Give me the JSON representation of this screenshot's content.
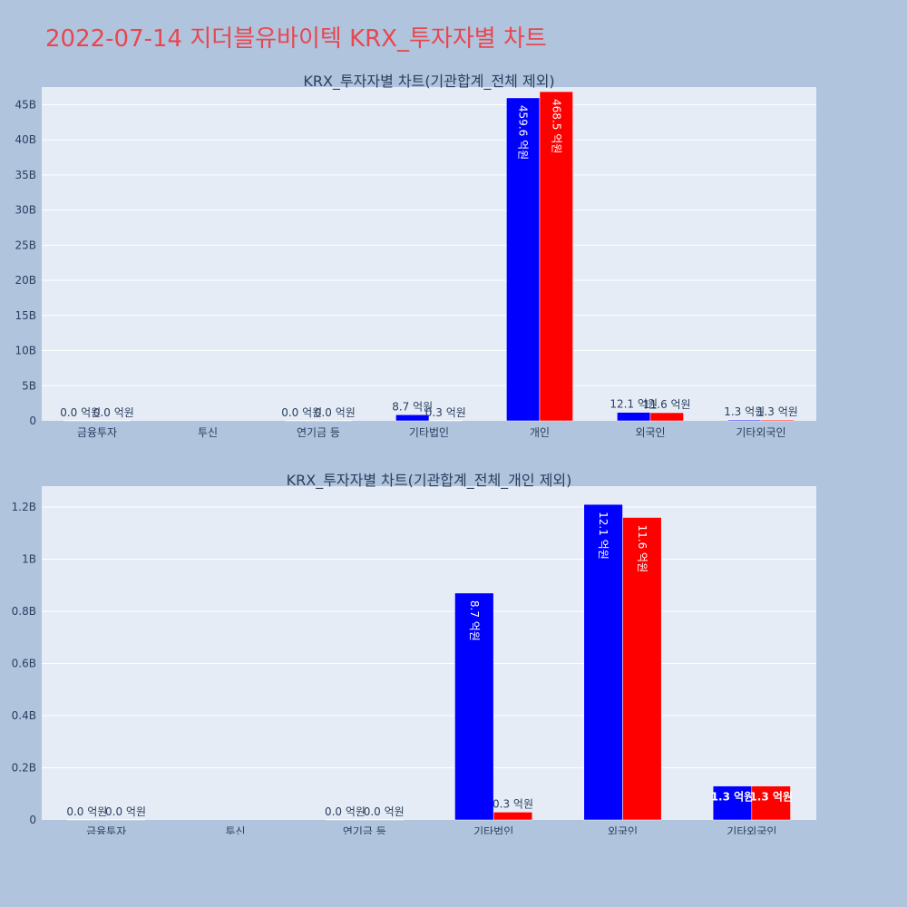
{
  "page_title": "2022-07-14 지더블유바이텍 KRX_투자자별 차트",
  "colors": {
    "background": "#b0c4de",
    "plot_bg": "#e5ecf6",
    "title": "#e8474f",
    "buy": "#0000ff",
    "sell": "#ff0000",
    "text": "#2a3f5f",
    "grid": "#ffffff"
  },
  "chart_data": [
    {
      "type": "bar",
      "title": "KRX_투자자별 차트(기관합계_전체 제외)",
      "categories": [
        "금융투자",
        "투신",
        "연기금 등",
        "기타법인",
        "개인",
        "외국인",
        "기타외국인"
      ],
      "series": [
        {
          "color": "#0000ff",
          "values": [
            0,
            null,
            0,
            870000000,
            45960000000,
            1210000000,
            130000000
          ],
          "labels": [
            "0.0 억원",
            "",
            "0.0 억원",
            "8.7 억원",
            "459.6 억원",
            "12.1 억원",
            "1.3 억원"
          ]
        },
        {
          "color": "#ff0000",
          "values": [
            0,
            null,
            0,
            30000000,
            46850000000,
            1160000000,
            130000000
          ],
          "labels": [
            "0.0 억원",
            "",
            "0.0 억원",
            "0.3 억원",
            "468.5 억원",
            "11.6 억원",
            "1.3 억원"
          ]
        }
      ],
      "ylim": [
        0,
        47500000000
      ],
      "yticks": [
        0,
        5000000000,
        10000000000,
        15000000000,
        20000000000,
        25000000000,
        30000000000,
        35000000000,
        40000000000,
        45000000000
      ],
      "ytick_labels": [
        "0",
        "5B",
        "10B",
        "15B",
        "20B",
        "25B",
        "30B",
        "35B",
        "40B",
        "45B"
      ],
      "grid": true,
      "xlabel": "",
      "ylabel": ""
    },
    {
      "type": "bar",
      "title": "KRX_투자자별 차트(기관합계_전체_개인 제외)",
      "categories": [
        "금융투자",
        "투신",
        "연기금 등",
        "기타법인",
        "외국인",
        "기타외국인"
      ],
      "series": [
        {
          "color": "#0000ff",
          "values": [
            0,
            null,
            0,
            870000000,
            1210000000,
            130000000
          ],
          "labels": [
            "0.0 억원",
            "",
            "0.0 억원",
            "8.7 억원",
            "12.1 억원",
            "1.3 억원"
          ]
        },
        {
          "color": "#ff0000",
          "values": [
            0,
            null,
            0,
            30000000,
            1160000000,
            130000000
          ],
          "labels": [
            "0.0 억원",
            "",
            "0.0 억원",
            "0.3 억원",
            "11.6 억원",
            "1.3 억원"
          ]
        }
      ],
      "ylim": [
        0,
        1280000000
      ],
      "yticks": [
        0,
        200000000,
        400000000,
        600000000,
        800000000,
        1000000000,
        1200000000
      ],
      "ytick_labels": [
        "0",
        "0.2B",
        "0.4B",
        "0.6B",
        "0.8B",
        "1B",
        "1.2B"
      ],
      "grid": true,
      "xlabel": "",
      "ylabel": ""
    }
  ]
}
